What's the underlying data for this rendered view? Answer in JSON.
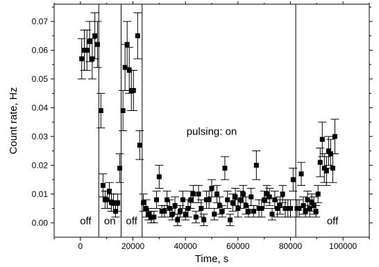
{
  "chart_data": {
    "type": "scatter",
    "title": "",
    "xlabel": "Time, s",
    "ylabel": "Count rate, Hz",
    "xlim": [
      -10000,
      110000
    ],
    "ylim": [
      -0.005,
      0.076
    ],
    "xticks": [
      0,
      20000,
      40000,
      60000,
      80000,
      100000
    ],
    "xtick_labels": [
      "0",
      "20000",
      "40000",
      "60000",
      "80000",
      "100000"
    ],
    "yticks": [
      0.0,
      0.01,
      0.02,
      0.03,
      0.04,
      0.05,
      0.06,
      0.07
    ],
    "ytick_labels": [
      "0.00",
      "0.01",
      "0.02",
      "0.03",
      "0.04",
      "0.05",
      "0.06",
      "0.07"
    ],
    "grid": false,
    "marker": "square",
    "vlines": [
      7000,
      15500,
      23500,
      82000
    ],
    "annotations": [
      {
        "text": "off",
        "x": 2000,
        "y": -0.0005
      },
      {
        "text": "on",
        "x": 11200,
        "y": -0.0005
      },
      {
        "text": "off",
        "x": 19500,
        "y": -0.0005
      },
      {
        "text": "pulsing: on",
        "x": 50000,
        "y": 0.0305
      },
      {
        "text": "off",
        "x": 96000,
        "y": -0.0005
      }
    ],
    "points": [
      [
        500,
        0.057,
        0.007
      ],
      [
        1500,
        0.06,
        0.007
      ],
      [
        2500,
        0.06,
        0.007
      ],
      [
        3500,
        0.063,
        0.007
      ],
      [
        4500,
        0.057,
        0.007
      ],
      [
        5500,
        0.065,
        0.008
      ],
      [
        6500,
        0.062,
        0.008
      ],
      [
        7800,
        0.039,
        0.006
      ],
      [
        8600,
        0.013,
        0.004
      ],
      [
        9400,
        0.008,
        0.003
      ],
      [
        10200,
        0.008,
        0.003
      ],
      [
        11000,
        0.011,
        0.003
      ],
      [
        11800,
        0.007,
        0.003
      ],
      [
        12600,
        0.007,
        0.003
      ],
      [
        13400,
        0.004,
        0.002
      ],
      [
        14200,
        0.007,
        0.003
      ],
      [
        15000,
        0.019,
        0.005
      ],
      [
        16200,
        0.039,
        0.007
      ],
      [
        17000,
        0.054,
        0.008
      ],
      [
        17800,
        0.062,
        0.008
      ],
      [
        18600,
        0.053,
        0.008
      ],
      [
        19400,
        0.046,
        0.007
      ],
      [
        20200,
        0.046,
        0.007
      ],
      [
        21800,
        0.065,
        0.008
      ],
      [
        22600,
        0.027,
        0.005
      ],
      [
        24000,
        0.007,
        0.003
      ],
      [
        25000,
        0.005,
        0.003
      ],
      [
        26000,
        0.003,
        0.002
      ],
      [
        27000,
        0.002,
        0.002
      ],
      [
        28000,
        0.002,
        0.002
      ],
      [
        29000,
        0.008,
        0.003
      ],
      [
        30000,
        0.016,
        0.004
      ],
      [
        31000,
        0.004,
        0.002
      ],
      [
        32000,
        0.004,
        0.002
      ],
      [
        33000,
        0.008,
        0.003
      ],
      [
        34000,
        0.005,
        0.003
      ],
      [
        35000,
        0.003,
        0.002
      ],
      [
        36000,
        0.006,
        0.003
      ],
      [
        37000,
        0.001,
        0.002
      ],
      [
        38000,
        0.004,
        0.002
      ],
      [
        39000,
        0.008,
        0.003
      ],
      [
        40000,
        0.003,
        0.002
      ],
      [
        41000,
        0.005,
        0.003
      ],
      [
        42000,
        0.008,
        0.003
      ],
      [
        43000,
        0.01,
        0.003
      ],
      [
        44000,
        0.002,
        0.002
      ],
      [
        45000,
        0.01,
        0.003
      ],
      [
        46000,
        0.005,
        0.003
      ],
      [
        47000,
        0.001,
        0.002
      ],
      [
        48000,
        0.008,
        0.003
      ],
      [
        49000,
        0.008,
        0.003
      ],
      [
        50000,
        0.012,
        0.003
      ],
      [
        51000,
        0.003,
        0.002
      ],
      [
        52000,
        0.01,
        0.003
      ],
      [
        53000,
        0.006,
        0.003
      ],
      [
        54000,
        0.004,
        0.002
      ],
      [
        55000,
        0.019,
        0.004
      ],
      [
        56000,
        0.008,
        0.003
      ],
      [
        57000,
        0.001,
        0.002
      ],
      [
        58000,
        0.007,
        0.003
      ],
      [
        59000,
        0.009,
        0.003
      ],
      [
        60000,
        0.005,
        0.003
      ],
      [
        61000,
        0.008,
        0.003
      ],
      [
        62000,
        0.01,
        0.003
      ],
      [
        63000,
        0.006,
        0.003
      ],
      [
        64000,
        0.004,
        0.002
      ],
      [
        65000,
        0.009,
        0.003
      ],
      [
        66000,
        0.004,
        0.002
      ],
      [
        67000,
        0.02,
        0.005
      ],
      [
        68000,
        0.005,
        0.003
      ],
      [
        69000,
        0.005,
        0.003
      ],
      [
        70000,
        0.008,
        0.003
      ],
      [
        71000,
        0.01,
        0.003
      ],
      [
        72000,
        0.009,
        0.003
      ],
      [
        73000,
        0.003,
        0.002
      ],
      [
        74000,
        0.008,
        0.003
      ],
      [
        75000,
        0.005,
        0.003
      ],
      [
        76000,
        0.006,
        0.003
      ],
      [
        77000,
        0.01,
        0.003
      ],
      [
        78000,
        0.005,
        0.003
      ],
      [
        79000,
        0.005,
        0.003
      ],
      [
        80000,
        0.005,
        0.003
      ],
      [
        81000,
        0.015,
        0.004
      ],
      [
        82500,
        0.005,
        0.003
      ],
      [
        83300,
        0.005,
        0.003
      ],
      [
        84100,
        0.017,
        0.004
      ],
      [
        84900,
        0.006,
        0.003
      ],
      [
        85700,
        0.004,
        0.002
      ],
      [
        86500,
        0.008,
        0.003
      ],
      [
        87300,
        0.005,
        0.003
      ],
      [
        88100,
        0.007,
        0.003
      ],
      [
        88900,
        0.006,
        0.003
      ],
      [
        89700,
        0.004,
        0.002
      ],
      [
        90500,
        0.01,
        0.003
      ],
      [
        91300,
        0.021,
        0.005
      ],
      [
        92100,
        0.029,
        0.006
      ],
      [
        92900,
        0.019,
        0.005
      ],
      [
        93700,
        0.018,
        0.005
      ],
      [
        94500,
        0.025,
        0.005
      ],
      [
        95300,
        0.024,
        0.005
      ],
      [
        96100,
        0.019,
        0.005
      ],
      [
        96900,
        0.03,
        0.006
      ]
    ]
  }
}
